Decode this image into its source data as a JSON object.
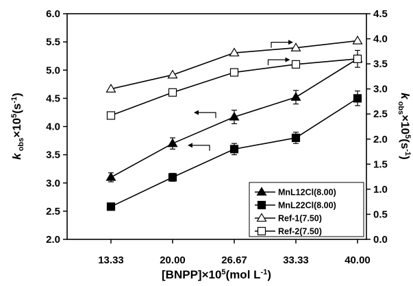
{
  "chart_data": {
    "type": "line",
    "categories": [
      "13.33",
      "20.00",
      "26.67",
      "33.33",
      "40.00"
    ],
    "xlabel": "[BNPP]×10⁵(mol L⁻¹)",
    "ylabel_left": "k obs×10⁵(s⁻¹)",
    "ylabel_right": "k obs×10⁵(s⁻¹)",
    "ylim_left": [
      2.0,
      6.0
    ],
    "ylim_right": [
      0.0,
      4.5
    ],
    "yticks_left": [
      "2.0",
      "2.5",
      "3.0",
      "3.5",
      "4.0",
      "4.5",
      "5.0",
      "5.5",
      "6.0"
    ],
    "yticks_right": [
      "0.0",
      "0.5",
      "1.0",
      "1.5",
      "2.0",
      "2.5",
      "3.0",
      "3.5",
      "4.0",
      "4.5"
    ],
    "grid": false,
    "legend_position": "bottom-right",
    "series": [
      {
        "name": "MnL12Cl(8.00)",
        "axis": "left",
        "marker": "filled-triangle",
        "values": [
          3.1,
          3.7,
          4.17,
          4.52,
          5.2
        ],
        "errors": [
          0.08,
          0.1,
          0.12,
          0.12,
          0.15
        ]
      },
      {
        "name": "MnL22Cl(8.00)",
        "axis": "left",
        "marker": "filled-square",
        "values": [
          2.58,
          3.1,
          3.6,
          3.8,
          4.5
        ],
        "errors": [
          0.06,
          0.07,
          0.1,
          0.1,
          0.13
        ]
      },
      {
        "name": "Ref-1(7.50)",
        "axis": "right",
        "marker": "open-triangle",
        "values": [
          3.0,
          3.28,
          3.72,
          3.82,
          3.96
        ],
        "errors": [
          0,
          0,
          0,
          0,
          0
        ]
      },
      {
        "name": "Ref-2(7.50)",
        "axis": "right",
        "marker": "open-square",
        "values": [
          2.47,
          2.93,
          3.33,
          3.49,
          3.6
        ],
        "errors": [
          0,
          0,
          0,
          0,
          0
        ]
      }
    ],
    "annotations": [
      {
        "type": "axis-arrow",
        "direction": "right",
        "series": "Ref-1(7.50)"
      },
      {
        "type": "axis-arrow",
        "direction": "right",
        "series": "Ref-2(7.50)"
      },
      {
        "type": "axis-arrow",
        "direction": "left",
        "series": "MnL12Cl(8.00)"
      },
      {
        "type": "axis-arrow",
        "direction": "left",
        "series": "MnL22Cl(8.00)"
      }
    ]
  }
}
